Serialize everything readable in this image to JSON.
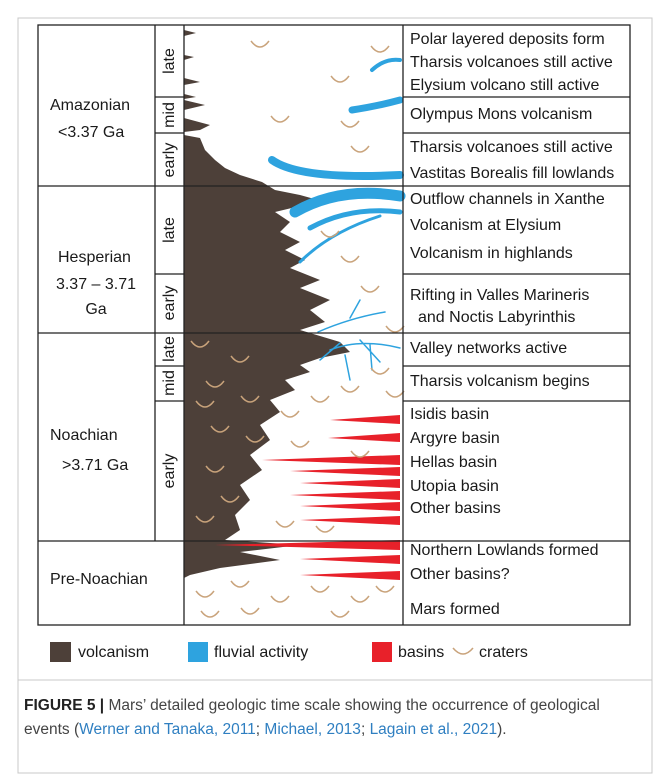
{
  "eras": [
    {
      "name": "Amazonian",
      "age": [
        "<3.37 Ga"
      ],
      "epochs": [
        {
          "label": "late",
          "events": [
            "Polar layered deposits form",
            "Tharsis volcanoes still active",
            "Elysium volcano still active"
          ]
        },
        {
          "label": "mid",
          "events": [
            "Olympus Mons volcanism"
          ]
        },
        {
          "label": "early",
          "events": [
            "Tharsis volcanoes still active",
            "Vastitas Borealis fill lowlands"
          ]
        }
      ]
    },
    {
      "name": "Hesperian",
      "age": [
        "3.37 – 3.71",
        "Ga"
      ],
      "epochs": [
        {
          "label": "late",
          "events": [
            "Outflow channels in Xanthe",
            "Volcanism at Elysium",
            "Volcanism in highlands"
          ]
        },
        {
          "label": "early",
          "events": [
            "Rifting in Valles Marineris",
            "and Noctis Labyrinthis"
          ]
        }
      ]
    },
    {
      "name": "Noachian",
      "age": [
        ">3.71 Ga"
      ],
      "epochs": [
        {
          "label": "late",
          "events": [
            "Valley networks active"
          ]
        },
        {
          "label": "mid",
          "events": [
            "Tharsis volcanism begins"
          ]
        },
        {
          "label": "early",
          "events": [
            "Isidis basin",
            "Argyre basin",
            "Hellas basin",
            "Utopia basin",
            "Other basins"
          ]
        }
      ]
    },
    {
      "name": "Pre-Noachian",
      "events": [
        "Northern Lowlands formed",
        "Other basins?",
        "Mars formed"
      ]
    }
  ],
  "legend": [
    "volcanism",
    "fluvial activity",
    "basins",
    "craters"
  ],
  "caption": {
    "label": "FIGURE 5 |",
    "parts": [
      " Mars’ detailed geologic time scale showing the occurrence of geological events (",
      "Werner and Tanaka, 2011",
      "; ",
      "Michael, 2013",
      "; ",
      "Lagain et al., 2021",
      ")."
    ]
  }
}
